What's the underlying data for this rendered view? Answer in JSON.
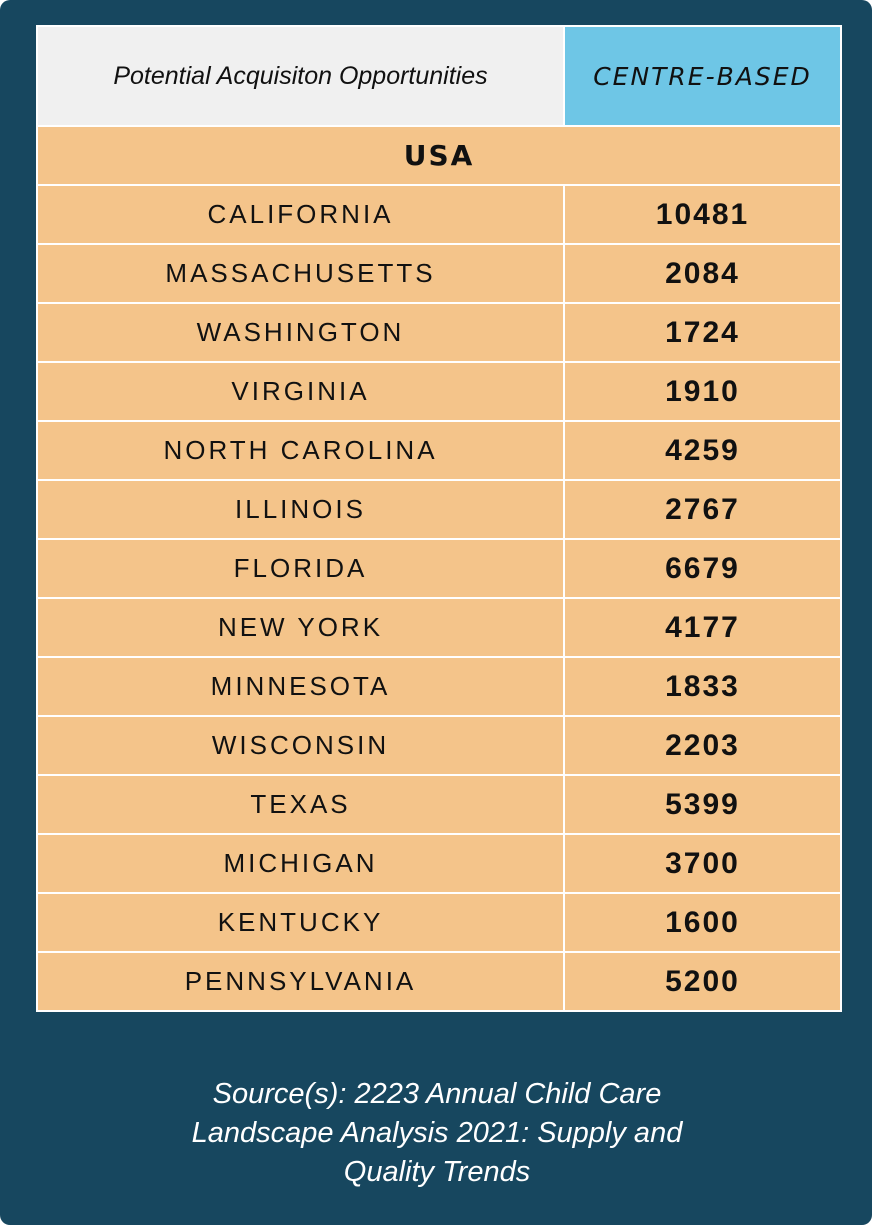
{
  "header": {
    "title": "Potential Acquisiton Opportunities",
    "column": "CENTRE-BASED"
  },
  "table": {
    "region": "USA",
    "rows": [
      [
        "CALIFORNIA",
        10481
      ],
      [
        "MASSACHUSETTS",
        2084
      ],
      [
        "WASHINGTON",
        1724
      ],
      [
        "VIRGINIA",
        1910
      ],
      [
        "NORTH CAROLINA",
        4259
      ],
      [
        "ILLINOIS",
        2767
      ],
      [
        "FLORIDA",
        6679
      ],
      [
        "NEW YORK",
        4177
      ],
      [
        "MINNESOTA",
        1833
      ],
      [
        "WISCONSIN",
        2203
      ],
      [
        "TEXAS",
        5399
      ],
      [
        "MICHIGAN",
        3700
      ],
      [
        "KENTUCKY",
        1600
      ],
      [
        "PENNSYLVANIA",
        5200
      ]
    ]
  },
  "footer": {
    "source": "Source(s): 2223 Annual Child Care Landscape Analysis 2021: Supply and Quality Trends"
  }
}
